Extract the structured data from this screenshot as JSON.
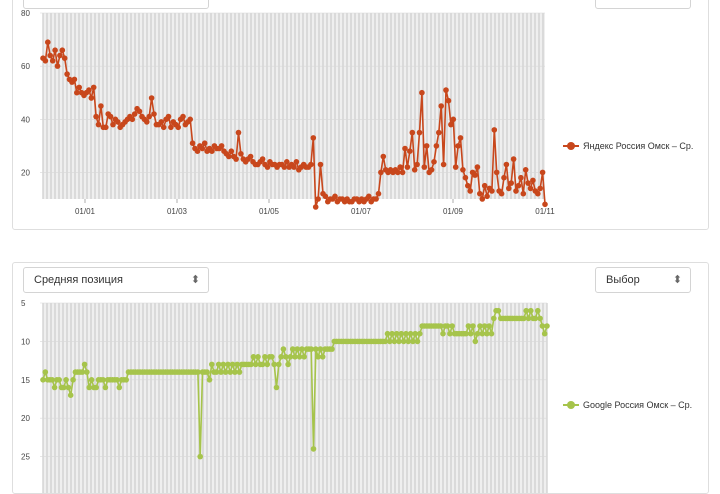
{
  "panel1": {
    "legend_label": "Яндекс Россия Омск – Ср.",
    "color": "#c8471c"
  },
  "panel2": {
    "metric_select": {
      "value": "Средняя позиция"
    },
    "choice_select": {
      "value": "Выбор"
    },
    "legend_label": "Google Россия Омск – Ср.",
    "color": "#a6c44b"
  },
  "chart_data": [
    {
      "type": "line",
      "ylim": [
        80,
        10
      ],
      "yticks": [
        20,
        40,
        60,
        80
      ],
      "xticks": [
        "01/01",
        "01/03",
        "01/05",
        "01/07",
        "01/09",
        "01/11"
      ],
      "grid": true,
      "legend_position": "right",
      "series": [
        {
          "name": "Яндекс Россия Омск – Ср.",
          "color": "#c8471c",
          "values": [
            63,
            62,
            69,
            64,
            62,
            66,
            60,
            64,
            66,
            63,
            57,
            55,
            54,
            55,
            50,
            52,
            50,
            49,
            50,
            51,
            48,
            52,
            41,
            38,
            45,
            37,
            37,
            42,
            41,
            38,
            40,
            39,
            37,
            38,
            39,
            40,
            41,
            40,
            42,
            44,
            43,
            41,
            40,
            39,
            41,
            48,
            42,
            38,
            38,
            39,
            37,
            40,
            41,
            37,
            39,
            38,
            37,
            40,
            41,
            38,
            39,
            40,
            31,
            29,
            28,
            30,
            29,
            31,
            28,
            29,
            28,
            30,
            29,
            29,
            30,
            28,
            27,
            26,
            28,
            26,
            25,
            35,
            27,
            25,
            24,
            25,
            26,
            24,
            23,
            23,
            24,
            25,
            23,
            22,
            24,
            23,
            23,
            22,
            23,
            23,
            22,
            24,
            22,
            23,
            22,
            24,
            21,
            22,
            23,
            22,
            22,
            23,
            33,
            7,
            10,
            23,
            12,
            11,
            9,
            10,
            10,
            11,
            9,
            10,
            10,
            9,
            10,
            9,
            9,
            10,
            10,
            9,
            10,
            9,
            10,
            11,
            9,
            10,
            10,
            12,
            20,
            26,
            21,
            20,
            21,
            20,
            21,
            20,
            22,
            20,
            29,
            22,
            28,
            35,
            21,
            23,
            35,
            50,
            22,
            30,
            20,
            21,
            24,
            30,
            35,
            45,
            23,
            51,
            47,
            38,
            40,
            22,
            30,
            33,
            21,
            18,
            15,
            13,
            20,
            19,
            22,
            12,
            10,
            15,
            11,
            14,
            13,
            36,
            20,
            13,
            12,
            18,
            23,
            14,
            16,
            25,
            13,
            15,
            18,
            12,
            21,
            16,
            14,
            17,
            13,
            12,
            14,
            20,
            8
          ],
          "dense_markers": true
        }
      ]
    },
    {
      "type": "line",
      "ylim": [
        5,
        30
      ],
      "yticks": [
        5,
        10,
        15,
        20,
        25
      ],
      "grid": true,
      "legend_position": "right",
      "series": [
        {
          "name": "Google Россия Омск – Ср.",
          "color": "#a6c44b",
          "values": [
            15,
            14,
            15,
            15,
            15,
            16,
            15,
            15,
            16,
            16,
            15,
            16,
            17,
            15,
            14,
            14,
            14,
            14,
            13,
            14,
            16,
            15,
            16,
            16,
            15,
            15,
            15,
            16,
            15,
            15,
            15,
            15,
            15,
            16,
            15,
            15,
            15,
            14,
            14,
            14,
            14,
            14,
            14,
            14,
            14,
            14,
            14,
            14,
            14,
            14,
            14,
            14,
            14,
            14,
            14,
            14,
            14,
            14,
            14,
            14,
            14,
            14,
            14,
            14,
            14,
            14,
            14,
            14,
            25,
            14,
            14,
            14,
            15,
            13,
            14,
            14,
            13,
            14,
            13,
            14,
            13,
            14,
            13,
            14,
            13,
            14,
            13,
            13,
            13,
            13,
            13,
            12,
            13,
            12,
            13,
            13,
            12,
            13,
            12,
            12,
            13,
            16,
            13,
            12,
            11,
            12,
            13,
            12,
            11,
            12,
            11,
            12,
            11,
            12,
            11,
            11,
            11,
            24,
            11,
            12,
            11,
            12,
            11,
            11,
            11,
            11,
            10,
            10,
            10,
            10,
            10,
            10,
            10,
            10,
            10,
            10,
            10,
            10,
            10,
            10,
            10,
            10,
            10,
            10,
            10,
            10,
            10,
            10,
            10,
            9,
            10,
            9,
            10,
            9,
            10,
            9,
            10,
            9,
            10,
            9,
            10,
            9,
            10,
            9,
            8,
            8,
            8,
            8,
            8,
            8,
            8,
            8,
            8,
            9,
            8,
            8,
            9,
            8,
            9,
            9,
            9,
            9,
            9,
            9,
            8,
            9,
            8,
            10,
            9,
            8,
            9,
            8,
            9,
            8,
            9,
            7,
            6,
            6,
            7,
            7,
            7,
            7,
            7,
            7,
            7,
            7,
            7,
            7,
            7,
            6,
            7,
            6,
            7,
            7,
            6,
            7,
            8,
            9,
            8
          ]
        }
      ]
    }
  ]
}
